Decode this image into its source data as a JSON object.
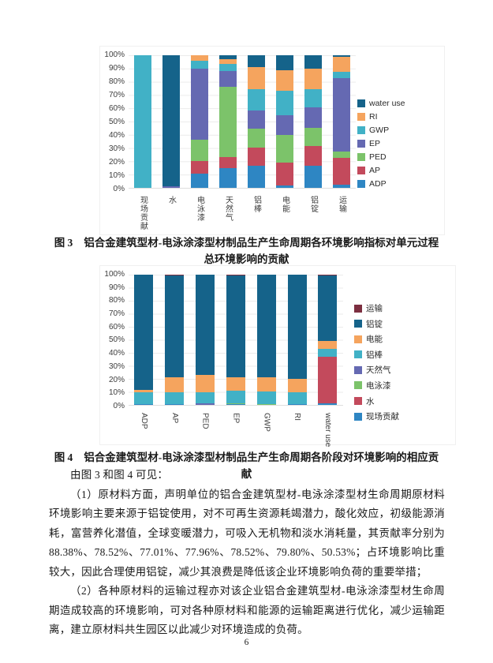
{
  "page": {
    "number": "6"
  },
  "figure3": {
    "label": "图 3",
    "caption": "铝合金建筑型材-电泳涂漆型材制品生产生命周期各环境影响指标对单元过程总环境影响的贡献"
  },
  "figure4": {
    "label": "图 4",
    "caption": "铝合金建筑型材-电泳涂漆型材制品生产生命周期各阶段对环境影响的相应贡献"
  },
  "body": {
    "intro": "由图 3 和图 4 可见：",
    "paragraph1": "（1）原材料方面，声明单位的铝合金建筑型材-电泳涂漆型材生命周期原材料环境影响主要来源于铝锭使用，对不可再生资源耗竭潜力，酸化效应，初级能源消耗，富营养化潜值，全球变暖潜力，可吸入无机物和淡水消耗量，其贡献率分别为 88.38%、78.52%、77.01%、77.96%、78.52%、79.80%、50.53%；占环境影响比重较大，因此合理使用铝锭，减少其浪费是降低该企业环境影响负荷的重要举措；",
    "paragraph2": "（2）各种原材料的运输过程亦对该企业铝合金建筑型材-电泳涂漆型材生命周期造成较高的环境影响，可对各种原材料和能源的运输距离进行优化，减少运输距离，建立原材料共生园区以此减少对环境造成的负荷。"
  },
  "chart_data": [
    {
      "type": "bar",
      "stacked": true,
      "units": "percent",
      "ylim": [
        0,
        100
      ],
      "grid": true,
      "legend_position": "right",
      "y_ticks": [
        "100%",
        "90%",
        "80%",
        "70%",
        "60%",
        "50%",
        "40%",
        "30%",
        "20%",
        "10%",
        "0%"
      ],
      "categories": [
        "现场贡献",
        "水",
        "电泳漆",
        "天然气",
        "铝棒",
        "电能",
        "铝锭",
        "运输"
      ],
      "x_label_orientation": "vertical-upright",
      "legend_order": [
        "water use",
        "RI",
        "GWP",
        "EP",
        "PED",
        "AP",
        "ADP"
      ],
      "series": [
        {
          "name": "ADP",
          "color": "#2e86c3",
          "values": [
            0,
            0,
            11,
            15,
            16.5,
            2,
            16.5,
            2.5
          ]
        },
        {
          "name": "AP",
          "color": "#c34a5c",
          "values": [
            0,
            0,
            9.5,
            8,
            14,
            17,
            15,
            20
          ]
        },
        {
          "name": "PED",
          "color": "#7cc36a",
          "values": [
            0,
            0,
            16,
            53,
            14,
            21,
            14,
            5
          ]
        },
        {
          "name": "EP",
          "color": "#6569b2",
          "values": [
            0,
            1,
            53.5,
            12,
            14,
            15,
            15,
            55
          ]
        },
        {
          "name": "GWP",
          "color": "#41b1c6",
          "values": [
            100,
            0,
            6,
            5.5,
            16,
            18,
            14,
            5
          ]
        },
        {
          "name": "RI",
          "color": "#f5a45e",
          "values": [
            0,
            0,
            4,
            3.5,
            16.5,
            16,
            15.5,
            11.5
          ]
        },
        {
          "name": "water use",
          "color": "#15638a",
          "values": [
            0,
            99,
            0,
            3,
            9,
            11,
            10,
            1
          ]
        }
      ]
    },
    {
      "type": "bar",
      "stacked": true,
      "units": "percent",
      "ylim": [
        0,
        100
      ],
      "grid": true,
      "legend_position": "right",
      "y_ticks": [
        "100%",
        "90%",
        "80%",
        "70%",
        "60%",
        "50%",
        "40%",
        "30%",
        "20%",
        "10%",
        "0%"
      ],
      "categories": [
        "ADP",
        "AP",
        "PED",
        "EP",
        "GWP",
        "RI",
        "water use"
      ],
      "x_label_orientation": "rotated-90",
      "legend_order": [
        "运输",
        "铝锭",
        "电能",
        "铝棒",
        "天然气",
        "电泳漆",
        "水",
        "现场贡献"
      ],
      "series": [
        {
          "name": "现场贡献",
          "color": "#2e86c3",
          "values": [
            0.5,
            0.5,
            0,
            0.5,
            0,
            0.5,
            1
          ]
        },
        {
          "name": "水",
          "color": "#c34a5c",
          "values": [
            0,
            0,
            0,
            0,
            0,
            0,
            36
          ]
        },
        {
          "name": "电泳漆",
          "color": "#7cc36a",
          "values": [
            0,
            0,
            0,
            1,
            0.7,
            0,
            0
          ]
        },
        {
          "name": "天然气",
          "color": "#6569b2",
          "values": [
            0,
            0,
            1,
            0,
            0,
            0,
            0
          ]
        },
        {
          "name": "铝棒",
          "color": "#41b1c6",
          "values": [
            9.5,
            9,
            9,
            9.5,
            9.8,
            9,
            6
          ]
        },
        {
          "name": "电能",
          "color": "#f5a45e",
          "values": [
            1.6,
            11.5,
            13,
            10.5,
            11,
            10.7,
            6
          ]
        },
        {
          "name": "铝锭",
          "color": "#15638a",
          "values": [
            88.4,
            78.5,
            77,
            78,
            78.5,
            79.8,
            50.5
          ]
        },
        {
          "name": "运输",
          "color": "#7c2f40",
          "values": [
            0,
            0.5,
            0,
            0.5,
            0,
            0,
            0.5
          ]
        }
      ]
    }
  ]
}
